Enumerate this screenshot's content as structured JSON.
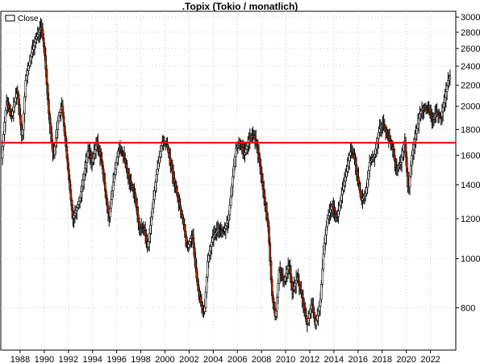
{
  "chart_data": {
    "type": "candlestick",
    "title": ".Topix (Tokio / monatlich)",
    "legend": {
      "label": "Close",
      "placement": "top-left"
    },
    "scale": "log",
    "ylim": [
      660,
      3080
    ],
    "xlim": [
      1986.4,
      2024.1
    ],
    "grid": true,
    "y_ticks": [
      800,
      1000,
      1200,
      1400,
      1600,
      1800,
      2000,
      2200,
      2400,
      2600,
      2800,
      3000
    ],
    "x_ticks": [
      1988,
      1990,
      1992,
      1994,
      1996,
      1998,
      2000,
      2002,
      2004,
      2006,
      2008,
      2010,
      2012,
      2014,
      2016,
      2018,
      2020,
      2022
    ],
    "reference_line": {
      "value": 1695,
      "color": "#ff0000"
    },
    "up_color": "#ffffff",
    "down_color": "#cc3300",
    "anchors": [
      [
        1986.5,
        1580
      ],
      [
        1986.9,
        2050
      ],
      [
        1987.3,
        1900
      ],
      [
        1987.8,
        2150
      ],
      [
        1988.2,
        1720
      ],
      [
        1988.5,
        2250
      ],
      [
        1988.9,
        2500
      ],
      [
        1989.3,
        2700
      ],
      [
        1989.8,
        2880
      ],
      [
        1990.1,
        2500
      ],
      [
        1990.4,
        1950
      ],
      [
        1990.8,
        1580
      ],
      [
        1991.2,
        1900
      ],
      [
        1991.5,
        2000
      ],
      [
        1991.8,
        1700
      ],
      [
        1992.0,
        1500
      ],
      [
        1992.4,
        1200
      ],
      [
        1992.7,
        1250
      ],
      [
        1993.0,
        1320
      ],
      [
        1993.4,
        1500
      ],
      [
        1993.7,
        1650
      ],
      [
        1994.0,
        1550
      ],
      [
        1994.4,
        1700
      ],
      [
        1994.8,
        1550
      ],
      [
        1995.1,
        1350
      ],
      [
        1995.4,
        1200
      ],
      [
        1995.8,
        1450
      ],
      [
        1996.2,
        1650
      ],
      [
        1996.6,
        1600
      ],
      [
        1997.0,
        1450
      ],
      [
        1997.5,
        1350
      ],
      [
        1997.9,
        1150
      ],
      [
        1998.3,
        1150
      ],
      [
        1998.6,
        1050
      ],
      [
        1998.9,
        1200
      ],
      [
        1999.3,
        1450
      ],
      [
        1999.8,
        1700
      ],
      [
        2000.2,
        1680
      ],
      [
        2000.6,
        1500
      ],
      [
        2001.0,
        1350
      ],
      [
        2001.5,
        1200
      ],
      [
        2001.9,
        1050
      ],
      [
        2002.3,
        1120
      ],
      [
        2002.7,
        900
      ],
      [
        2003.0,
        820
      ],
      [
        2003.3,
        780
      ],
      [
        2003.6,
        1000
      ],
      [
        2004.0,
        1100
      ],
      [
        2004.5,
        1150
      ],
      [
        2004.9,
        1130
      ],
      [
        2005.3,
        1200
      ],
      [
        2005.6,
        1400
      ],
      [
        2005.9,
        1650
      ],
      [
        2006.3,
        1700
      ],
      [
        2006.6,
        1600
      ],
      [
        2007.0,
        1720
      ],
      [
        2007.4,
        1760
      ],
      [
        2007.8,
        1600
      ],
      [
        2008.2,
        1350
      ],
      [
        2008.6,
        1150
      ],
      [
        2008.9,
        850
      ],
      [
        2009.2,
        760
      ],
      [
        2009.5,
        950
      ],
      [
        2009.9,
        900
      ],
      [
        2010.3,
        980
      ],
      [
        2010.6,
        860
      ],
      [
        2011.0,
        920
      ],
      [
        2011.4,
        840
      ],
      [
        2011.8,
        740
      ],
      [
        2012.2,
        820
      ],
      [
        2012.5,
        740
      ],
      [
        2012.9,
        820
      ],
      [
        2013.2,
        1050
      ],
      [
        2013.5,
        1200
      ],
      [
        2013.9,
        1280
      ],
      [
        2014.3,
        1200
      ],
      [
        2014.7,
        1350
      ],
      [
        2015.0,
        1450
      ],
      [
        2015.4,
        1630
      ],
      [
        2015.7,
        1600
      ],
      [
        2016.0,
        1450
      ],
      [
        2016.3,
        1300
      ],
      [
        2016.7,
        1350
      ],
      [
        2017.0,
        1550
      ],
      [
        2017.4,
        1600
      ],
      [
        2017.8,
        1800
      ],
      [
        2018.1,
        1850
      ],
      [
        2018.5,
        1750
      ],
      [
        2018.9,
        1650
      ],
      [
        2019.2,
        1500
      ],
      [
        2019.6,
        1550
      ],
      [
        2019.9,
        1720
      ],
      [
        2020.2,
        1350
      ],
      [
        2020.5,
        1600
      ],
      [
        2020.9,
        1800
      ],
      [
        2021.2,
        1950
      ],
      [
        2021.6,
        2000
      ],
      [
        2021.9,
        1950
      ],
      [
        2022.2,
        1880
      ],
      [
        2022.6,
        1950
      ],
      [
        2022.9,
        1900
      ],
      [
        2023.2,
        2050
      ],
      [
        2023.5,
        2250
      ],
      [
        2023.7,
        2300
      ]
    ]
  }
}
